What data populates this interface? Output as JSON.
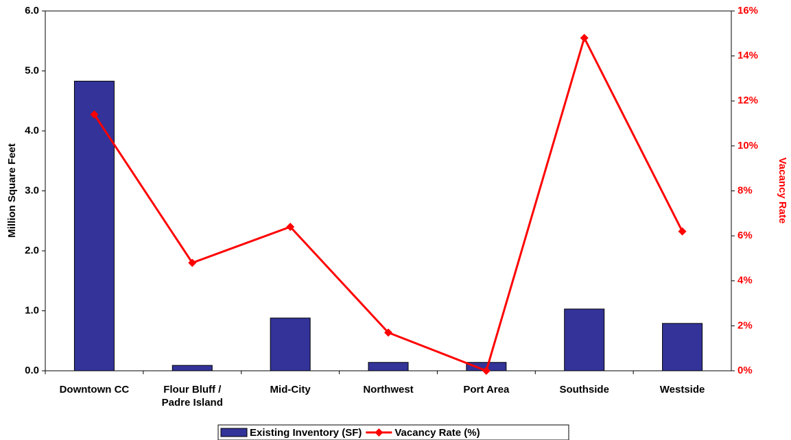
{
  "chart_data": {
    "type": "bar",
    "categories": [
      "Downtown CC",
      "Flour Bluff / Padre Island",
      "Mid-City",
      "Northwest",
      "Port Area",
      "Southside",
      "Westside"
    ],
    "series": [
      {
        "name": "Existing Inventory (SF)",
        "type": "bar",
        "color": "#333399",
        "values": [
          4.83,
          0.09,
          0.88,
          0.14,
          0.14,
          1.03,
          0.79
        ]
      },
      {
        "name": "Vacancy Rate (%)",
        "type": "line",
        "color": "#ff0000",
        "axis": "y2",
        "values": [
          11.4,
          4.8,
          6.4,
          1.7,
          0,
          14.8,
          6.2
        ]
      }
    ],
    "ylabel": "Million Square Feet",
    "y2label": "Vacancy Rate",
    "ylim": [
      0,
      6
    ],
    "yticks": [
      {
        "value": 0,
        "label": "0.0"
      },
      {
        "value": 1,
        "label": "1.0"
      },
      {
        "value": 2,
        "label": "2.0"
      },
      {
        "value": 3,
        "label": "3.0"
      },
      {
        "value": 4,
        "label": "4.0"
      },
      {
        "value": 5,
        "label": "5.0"
      },
      {
        "value": 6,
        "label": "6.0"
      }
    ],
    "y2lim": [
      0,
      16
    ],
    "y2ticks": [
      {
        "value": 0,
        "label": "0%"
      },
      {
        "value": 2,
        "label": "2%"
      },
      {
        "value": 4,
        "label": "4%"
      },
      {
        "value": 6,
        "label": "6%"
      },
      {
        "value": 8,
        "label": "8%"
      },
      {
        "value": 10,
        "label": "10%"
      },
      {
        "value": 12,
        "label": "12%"
      },
      {
        "value": 14,
        "label": "14%"
      },
      {
        "value": 16,
        "label": "16%"
      }
    ],
    "legend": "bottom"
  }
}
